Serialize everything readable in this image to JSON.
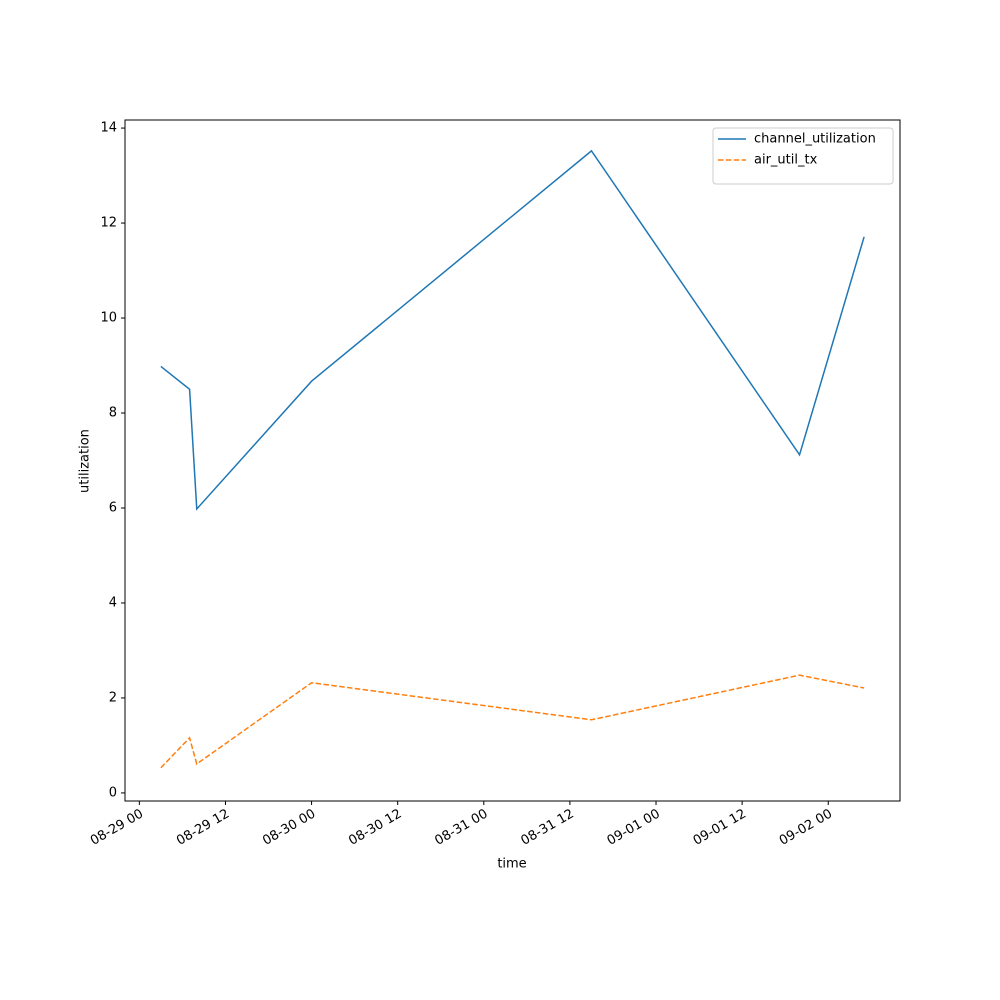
{
  "chart_data": {
    "type": "line",
    "x_label": "time",
    "y_label": "utilization",
    "x": [
      "08-29 03",
      "08-29 07",
      "08-29 08",
      "08-30 00",
      "08-31 15",
      "09-01 20",
      "09-02 05"
    ],
    "series": [
      {
        "name": "channel_utilization",
        "color": "#1f77b4",
        "linestyle": "solid",
        "values": [
          8.98,
          8.5,
          5.98,
          8.67,
          13.52,
          7.12,
          11.71
        ]
      },
      {
        "name": "air_util_tx",
        "color": "#ff7f0e",
        "linestyle": "dashed",
        "values": [
          0.53,
          1.16,
          0.61,
          2.32,
          1.54,
          2.48,
          2.21
        ]
      }
    ],
    "xlim": [
      "08-28 22",
      "09-02 10"
    ],
    "xticks": [
      "08-29 00",
      "08-29 12",
      "08-30 00",
      "08-30 12",
      "08-31 00",
      "08-31 12",
      "09-01 00",
      "09-01 12",
      "09-02 00"
    ],
    "ylim": [
      -0.17,
      14.17
    ],
    "yticks": [
      0,
      2,
      4,
      6,
      8,
      10,
      12,
      14
    ],
    "legend": "upper right",
    "grid": false
  }
}
